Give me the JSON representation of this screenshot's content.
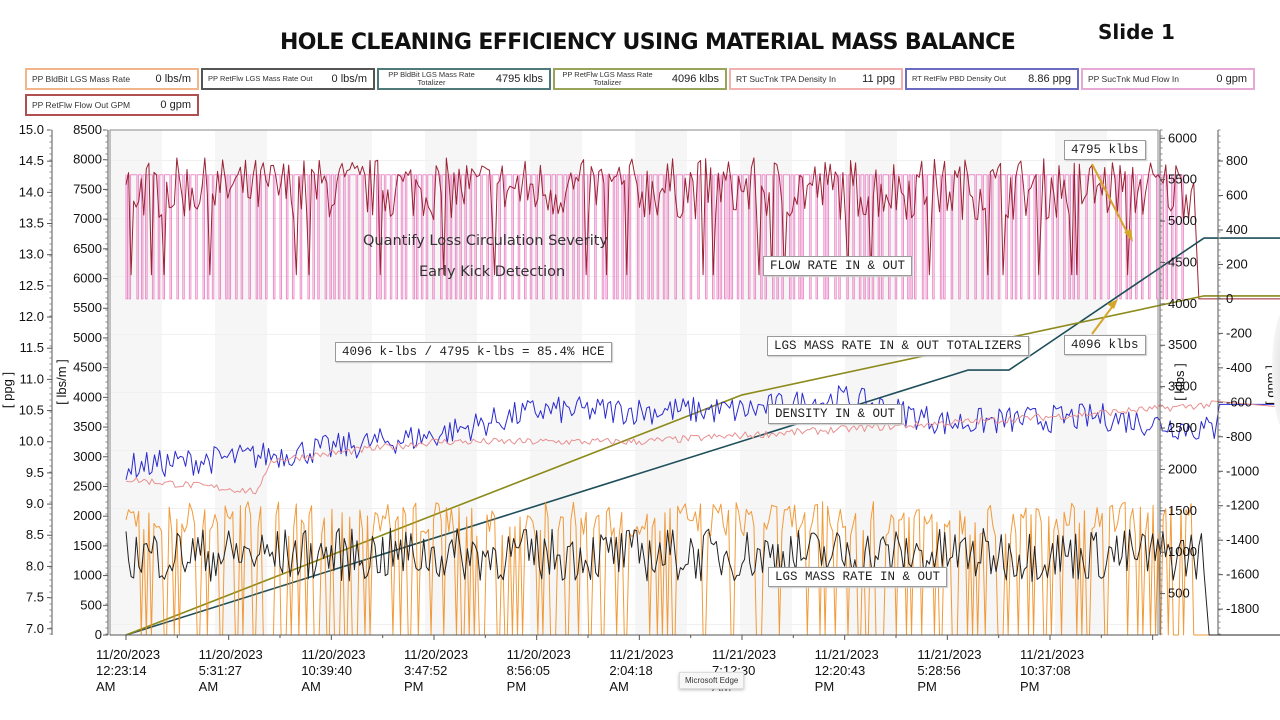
{
  "slide": {
    "title": "HOLE CLEANING EFFICIENCY USING MATERIAL MASS BALANCE",
    "label": "Slide 1"
  },
  "gauges": [
    {
      "label": "PP BldBit LGS Mass Rate",
      "value": "0 lbs/m",
      "color": "#f2b58a"
    },
    {
      "label": "PP RetFlw LGS Mass Rate Out",
      "value": "0 lbs/m",
      "color": "#555555"
    },
    {
      "label": "PP BldBit LGS Mass Rate Totalizer",
      "value": "4795 klbs",
      "color": "#4f7a7a"
    },
    {
      "label": "PP RetFlw LGS Mass Rate Totalizer",
      "value": "4096 klbs",
      "color": "#9aa35a"
    },
    {
      "label": "RT SucTnk TPA Density In",
      "value": "11 ppg",
      "color": "#f2b0b0"
    },
    {
      "label": "RT RetFlw PBD Density Out",
      "value": "8.86 ppg",
      "color": "#6a6ac0"
    },
    {
      "label": "PP SucTnk Mud Flow In",
      "value": "0 gpm",
      "color": "#e6a8d4"
    },
    {
      "label": "PP RetFlw Flow Out GPM",
      "value": "0 gpm",
      "color": "#b05050"
    }
  ],
  "annotations": {
    "loss_circ": "Quantify Loss Circulation Severity",
    "kick": "Early Kick Detection",
    "flow_rate": "FLOW RATE IN & OUT",
    "totalizers": "LGS MASS RATE IN & OUT TOTALIZERS",
    "density": "DENSITY IN & OUT",
    "mass_rate": "LGS MASS RATE IN & OUT",
    "hce": "4096 k-lbs / 4795 k-lbs = 85.4% HCE",
    "total_in": "4795 klbs",
    "total_out": "4096 klbs"
  },
  "tooltip": "Microsoft Edge",
  "chart_data": {
    "type": "line",
    "title": "HOLE CLEANING EFFICIENCY USING MATERIAL MASS BALANCE",
    "x_ticks": [
      [
        "11/20/2023",
        "12:23:14",
        "AM"
      ],
      [
        "11/20/2023",
        "5:31:27",
        "AM"
      ],
      [
        "11/20/2023",
        "10:39:40",
        "AM"
      ],
      [
        "11/20/2023",
        "3:47:52",
        "PM"
      ],
      [
        "11/20/2023",
        "8:56:05",
        "PM"
      ],
      [
        "11/21/2023",
        "2:04:18",
        "AM"
      ],
      [
        "11/21/2023",
        "7:12:30",
        "AM"
      ],
      [
        "11/21/2023",
        "12:20:43",
        "PM"
      ],
      [
        "11/21/2023",
        "5:28:56",
        "PM"
      ],
      [
        "11/21/2023",
        "10:37:08",
        "PM"
      ]
    ],
    "x_range_ticks": [
      0,
      11.3
    ],
    "axes": {
      "ppg": {
        "label": "[ ppg ]",
        "range": [
          6.9,
          15.0
        ],
        "ticks": [
          "7.0",
          "7.5",
          "8.0",
          "8.5",
          "9.0",
          "9.5",
          "10.0",
          "10.5",
          "11.0",
          "11.5",
          "12.0",
          "12.5",
          "13.0",
          "13.5",
          "14.0",
          "14.5",
          "15.0"
        ]
      },
      "lbs_m": {
        "label": "[ lbs/m ]",
        "range": [
          0,
          8500
        ],
        "ticks": [
          "0",
          "500",
          "1000",
          "1500",
          "2000",
          "2500",
          "3000",
          "3500",
          "4000",
          "4500",
          "5000",
          "5500",
          "6000",
          "6500",
          "7000",
          "7500",
          "8000",
          "8500"
        ]
      },
      "klbs": {
        "label": "[ klbs ]",
        "range": [
          0,
          6100
        ],
        "ticks": [
          "500",
          "1000",
          "1500",
          "2000",
          "2500",
          "3000",
          "3500",
          "4000",
          "4500",
          "5000",
          "5500",
          "6000"
        ]
      },
      "gpm": {
        "label": "[ gpm ]",
        "range": [
          -1950,
          980
        ],
        "ticks": [
          "-1800",
          "-1600",
          "-1400",
          "-1200",
          "-1000",
          "-800",
          "-600",
          "-400",
          "-200",
          "0",
          "200",
          "400",
          "600",
          "800"
        ]
      }
    },
    "series": [
      {
        "name": "PP SucTnk Mud Flow In",
        "axis": "gpm",
        "color": "#e87cc0",
        "style": "square-wave",
        "high": 720,
        "low": 0,
        "end_t": 10.3
      },
      {
        "name": "PP RetFlw Flow Out GPM",
        "axis": "gpm",
        "color": "#9b2335",
        "mean": 640,
        "amp": 180,
        "end_t": 10.4
      },
      {
        "name": "PP BldBit LGS Mass Rate Totalizer",
        "axis": "klbs",
        "color": "#1f4f5a",
        "points": [
          [
            0,
            0
          ],
          [
            8.2,
            3200
          ],
          [
            8.6,
            3200
          ],
          [
            10.5,
            4795
          ],
          [
            11.3,
            4795
          ]
        ]
      },
      {
        "name": "PP RetFlw LGS Mass Rate Totalizer",
        "axis": "klbs",
        "color": "#8c8a1a",
        "points": [
          [
            0,
            0
          ],
          [
            6.0,
            2900
          ],
          [
            10.5,
            4096
          ],
          [
            11.3,
            4096
          ]
        ]
      },
      {
        "name": "RT RetFlw PBD Density Out",
        "axis": "ppg",
        "color": "#2b2bd0",
        "trend": [
          [
            0,
            9.6
          ],
          [
            1.5,
            9.8
          ],
          [
            3,
            10.1
          ],
          [
            4,
            10.5
          ],
          [
            6,
            10.5
          ],
          [
            7,
            10.7
          ],
          [
            8,
            10.3
          ],
          [
            9.5,
            10.4
          ],
          [
            10.5,
            10.2
          ]
        ]
      },
      {
        "name": "RT SucTnk TPA Density In",
        "axis": "ppg",
        "color": "#e89090",
        "trend": [
          [
            0,
            9.4
          ],
          [
            1.3,
            9.2
          ],
          [
            1.4,
            9.7
          ],
          [
            3,
            10.0
          ],
          [
            5,
            10.0
          ],
          [
            7,
            10.2
          ],
          [
            9,
            10.4
          ],
          [
            10.6,
            10.6
          ],
          [
            11.3,
            10.55
          ]
        ]
      },
      {
        "name": "PP BldBit LGS Mass Rate",
        "axis": "lbs_m",
        "color": "#f08a18",
        "mean": 1950,
        "amp": 300,
        "end_t": 10.4
      },
      {
        "name": "PP RetFlw LGS Mass Rate Out",
        "axis": "lbs_m",
        "color": "#222222",
        "mean": 1350,
        "amp": 450,
        "end_t": 10.5
      }
    ]
  }
}
